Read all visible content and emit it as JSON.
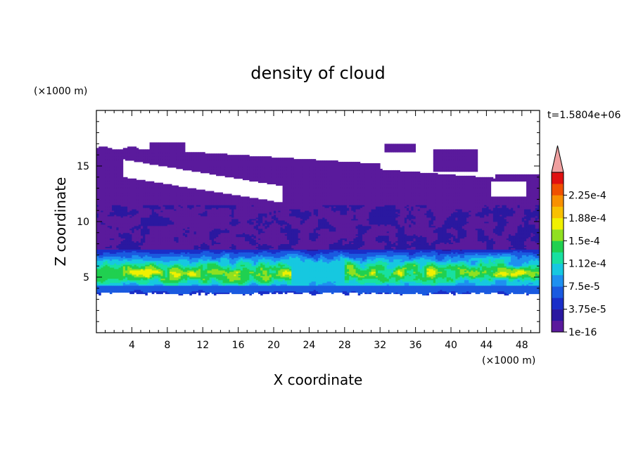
{
  "chart_data": {
    "type": "heatmap",
    "title": "density of cloud",
    "xlabel": "X coordinate",
    "ylabel": "Z coordinate",
    "x_unit": "(×1000 m)",
    "y_unit": "(×1000 m)",
    "time_label": "t=1.5804e+06",
    "xlim": [
      0,
      50
    ],
    "ylim": [
      0,
      20
    ],
    "x_ticks": [
      4,
      8,
      12,
      16,
      20,
      24,
      28,
      32,
      36,
      40,
      44,
      48
    ],
    "y_ticks": [
      5,
      10,
      15
    ],
    "colorbar": {
      "tick_labels": [
        "1e-16",
        "3.75e-5",
        "7.5e-5",
        "1.12e-4",
        "1.5e-4",
        "1.88e-4",
        "2.25e-4"
      ],
      "levels": [
        1e-16,
        1.875e-05,
        3.75e-05,
        5.625e-05,
        7.5e-05,
        9.375e-05,
        0.0001125,
        0.00013125,
        0.00015,
        0.00016875,
        0.0001875,
        0.00020625,
        0.000225,
        0.00024375
      ],
      "colors": [
        "#5a1a9c",
        "#2a18a0",
        "#1a2ec8",
        "#1a5ae0",
        "#1e90f0",
        "#16c8e0",
        "#18e0a0",
        "#20d050",
        "#90e020",
        "#f0f000",
        "#f8c000",
        "#f89000",
        "#f05000",
        "#e01010"
      ],
      "extend_max_color": "#f0a0a0"
    },
    "regions": {
      "upper_layer": {
        "x": [
          0,
          50
        ],
        "z_bottom": 11.3,
        "z_top": 17.2,
        "level": 0
      },
      "clear_pocket": {
        "x": [
          3,
          21
        ],
        "z": [
          12,
          15.7
        ]
      },
      "mid_layer": {
        "x": [
          0,
          50
        ],
        "z": [
          7.5,
          11.5
        ],
        "levels": [
          0,
          1
        ]
      },
      "core_band": {
        "x": [
          0,
          50
        ],
        "z": [
          3.5,
          6.5
        ],
        "peak_level": 9,
        "peak_z": 5.4
      },
      "cloud_base_z": 3.4,
      "isolated_patches": [
        {
          "x": [
            32.5,
            36
          ],
          "z": [
            16.3,
            17
          ]
        },
        {
          "x": [
            38,
            43
          ],
          "z": [
            14.5,
            16.5
          ]
        }
      ]
    }
  }
}
